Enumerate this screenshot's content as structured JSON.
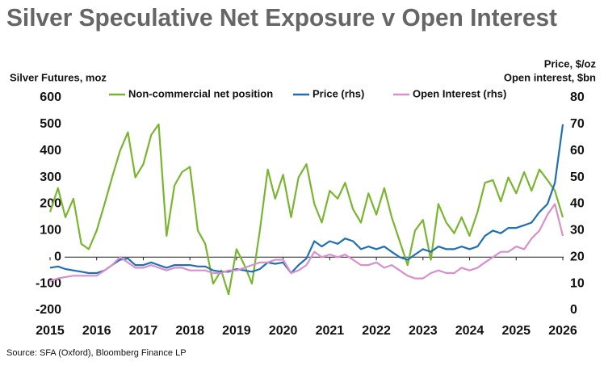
{
  "chart_data": {
    "type": "line",
    "title": "Silver Speculative Net Exposure v Open Interest",
    "y_label": "Silver Futures, moz",
    "y2_label": [
      "Price, $/oz",
      "Open interest, $bn"
    ],
    "source": "Source: SFA (Oxford), Bloomberg Finance LP",
    "x": [
      2015,
      2015.17,
      2015.33,
      2015.5,
      2015.67,
      2015.83,
      2016,
      2016.17,
      2016.33,
      2016.5,
      2016.67,
      2016.83,
      2017,
      2017.17,
      2017.33,
      2017.5,
      2017.67,
      2017.83,
      2018,
      2018.17,
      2018.33,
      2018.5,
      2018.67,
      2018.83,
      2019,
      2019.17,
      2019.33,
      2019.5,
      2019.67,
      2019.83,
      2020,
      2020.17,
      2020.33,
      2020.5,
      2020.67,
      2020.83,
      2021,
      2021.17,
      2021.33,
      2021.5,
      2021.67,
      2021.83,
      2022,
      2022.17,
      2022.33,
      2022.5,
      2022.67,
      2022.83,
      2023,
      2023.17,
      2023.33,
      2023.5,
      2023.67,
      2023.83,
      2024,
      2024.17,
      2024.33,
      2024.5,
      2024.67,
      2024.83,
      2025,
      2025.17,
      2025.33,
      2025.5,
      2025.67,
      2025.83,
      2026
    ],
    "series": [
      {
        "name": "Non-commercial net position",
        "color": "#7ab530",
        "values": [
          170,
          260,
          150,
          220,
          50,
          30,
          100,
          200,
          300,
          400,
          470,
          300,
          350,
          460,
          500,
          80,
          270,
          320,
          340,
          100,
          50,
          -100,
          -50,
          -140,
          30,
          -30,
          -100,
          100,
          330,
          220,
          310,
          150,
          300,
          350,
          200,
          130,
          250,
          220,
          280,
          180,
          130,
          240,
          160,
          260,
          150,
          60,
          -30,
          100,
          140,
          -10,
          200,
          130,
          90,
          150,
          80,
          170,
          280,
          290,
          210,
          300,
          240,
          320,
          250,
          330,
          290,
          250,
          150
        ]
      },
      {
        "name": "Price (rhs)",
        "color": "#1f6fb4",
        "axis": "y2",
        "values": [
          16,
          16.5,
          15.5,
          15,
          14.5,
          14,
          14,
          15,
          17,
          19,
          19.5,
          17,
          17,
          18,
          17,
          16,
          17,
          17,
          17,
          16.5,
          16.5,
          15,
          14.5,
          14.5,
          15.5,
          15,
          14.5,
          15.5,
          18,
          17.5,
          18,
          14,
          17,
          19.5,
          26,
          24,
          26,
          25,
          27,
          26,
          23,
          24,
          23,
          24,
          22,
          20,
          19,
          21,
          23,
          22,
          24,
          23,
          23,
          24,
          23,
          24,
          28,
          30,
          29,
          31,
          31,
          32,
          33,
          37,
          40,
          48,
          70
        ]
      },
      {
        "name": "Open Interest (rhs)",
        "color": "#d98fcc",
        "axis": "y2",
        "values": [
          11,
          12,
          12.5,
          13,
          13,
          13,
          13,
          15,
          17,
          20,
          18,
          16,
          16,
          17,
          16,
          15,
          16,
          16,
          15,
          15,
          15,
          14,
          14,
          15,
          15,
          16,
          17,
          18,
          18,
          19,
          19,
          14,
          15,
          17,
          22,
          20,
          21,
          20,
          21,
          19,
          17,
          17,
          18,
          16,
          17,
          15,
          13,
          12,
          12,
          14,
          15,
          14,
          14,
          16,
          15,
          16,
          18,
          20,
          22,
          22,
          24,
          23,
          27,
          30,
          36,
          40,
          28
        ]
      }
    ],
    "xlim": [
      2015,
      2026
    ],
    "xticks": [
      2015,
      2016,
      2017,
      2018,
      2019,
      2020,
      2021,
      2022,
      2023,
      2024,
      2025,
      2026
    ],
    "ylim": [
      -200,
      600
    ],
    "yticks": [
      -200,
      -100,
      0,
      100,
      200,
      300,
      400,
      500,
      600
    ],
    "y2lim": [
      0,
      80
    ],
    "y2ticks": [
      0,
      10,
      20,
      30,
      40,
      50,
      60,
      70,
      80
    ]
  }
}
